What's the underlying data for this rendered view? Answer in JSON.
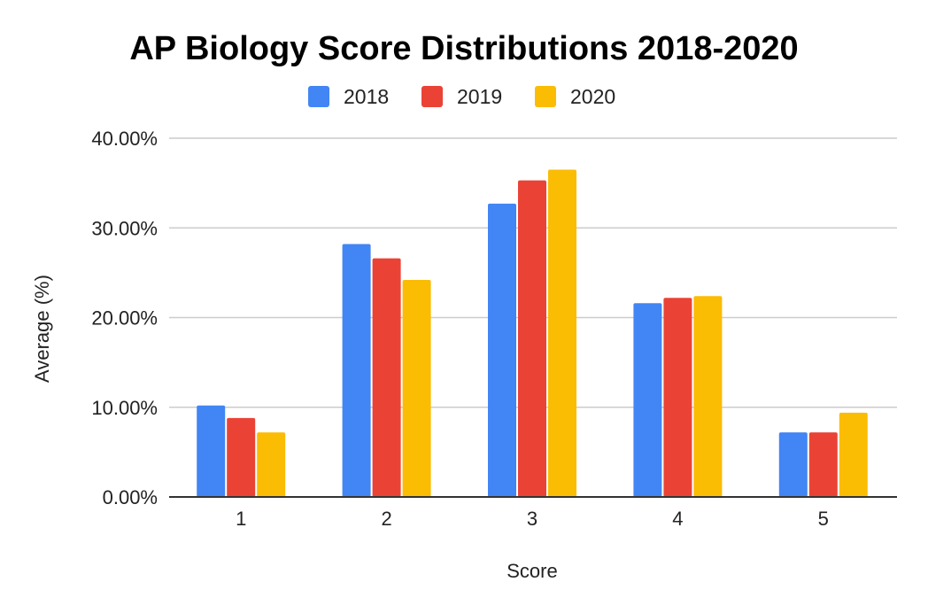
{
  "chart_data": {
    "type": "bar",
    "title": "AP Biology Score Distributions 2018-2020",
    "xlabel": "Score",
    "ylabel": "Average (%)",
    "categories": [
      "1",
      "2",
      "3",
      "4",
      "5"
    ],
    "series": [
      {
        "name": "2018",
        "color": "#4285f4",
        "values": [
          10.2,
          28.2,
          32.7,
          21.6,
          7.2
        ]
      },
      {
        "name": "2019",
        "color": "#ea4335",
        "values": [
          8.8,
          26.6,
          35.3,
          22.2,
          7.2
        ]
      },
      {
        "name": "2020",
        "color": "#fbbc04",
        "values": [
          7.2,
          24.2,
          36.5,
          22.4,
          9.4
        ]
      }
    ],
    "ylim": [
      0,
      40
    ],
    "yticks": [
      "0.00%",
      "10.00%",
      "20.00%",
      "30.00%",
      "40.00%"
    ],
    "grid": true,
    "legend_position": "top"
  }
}
